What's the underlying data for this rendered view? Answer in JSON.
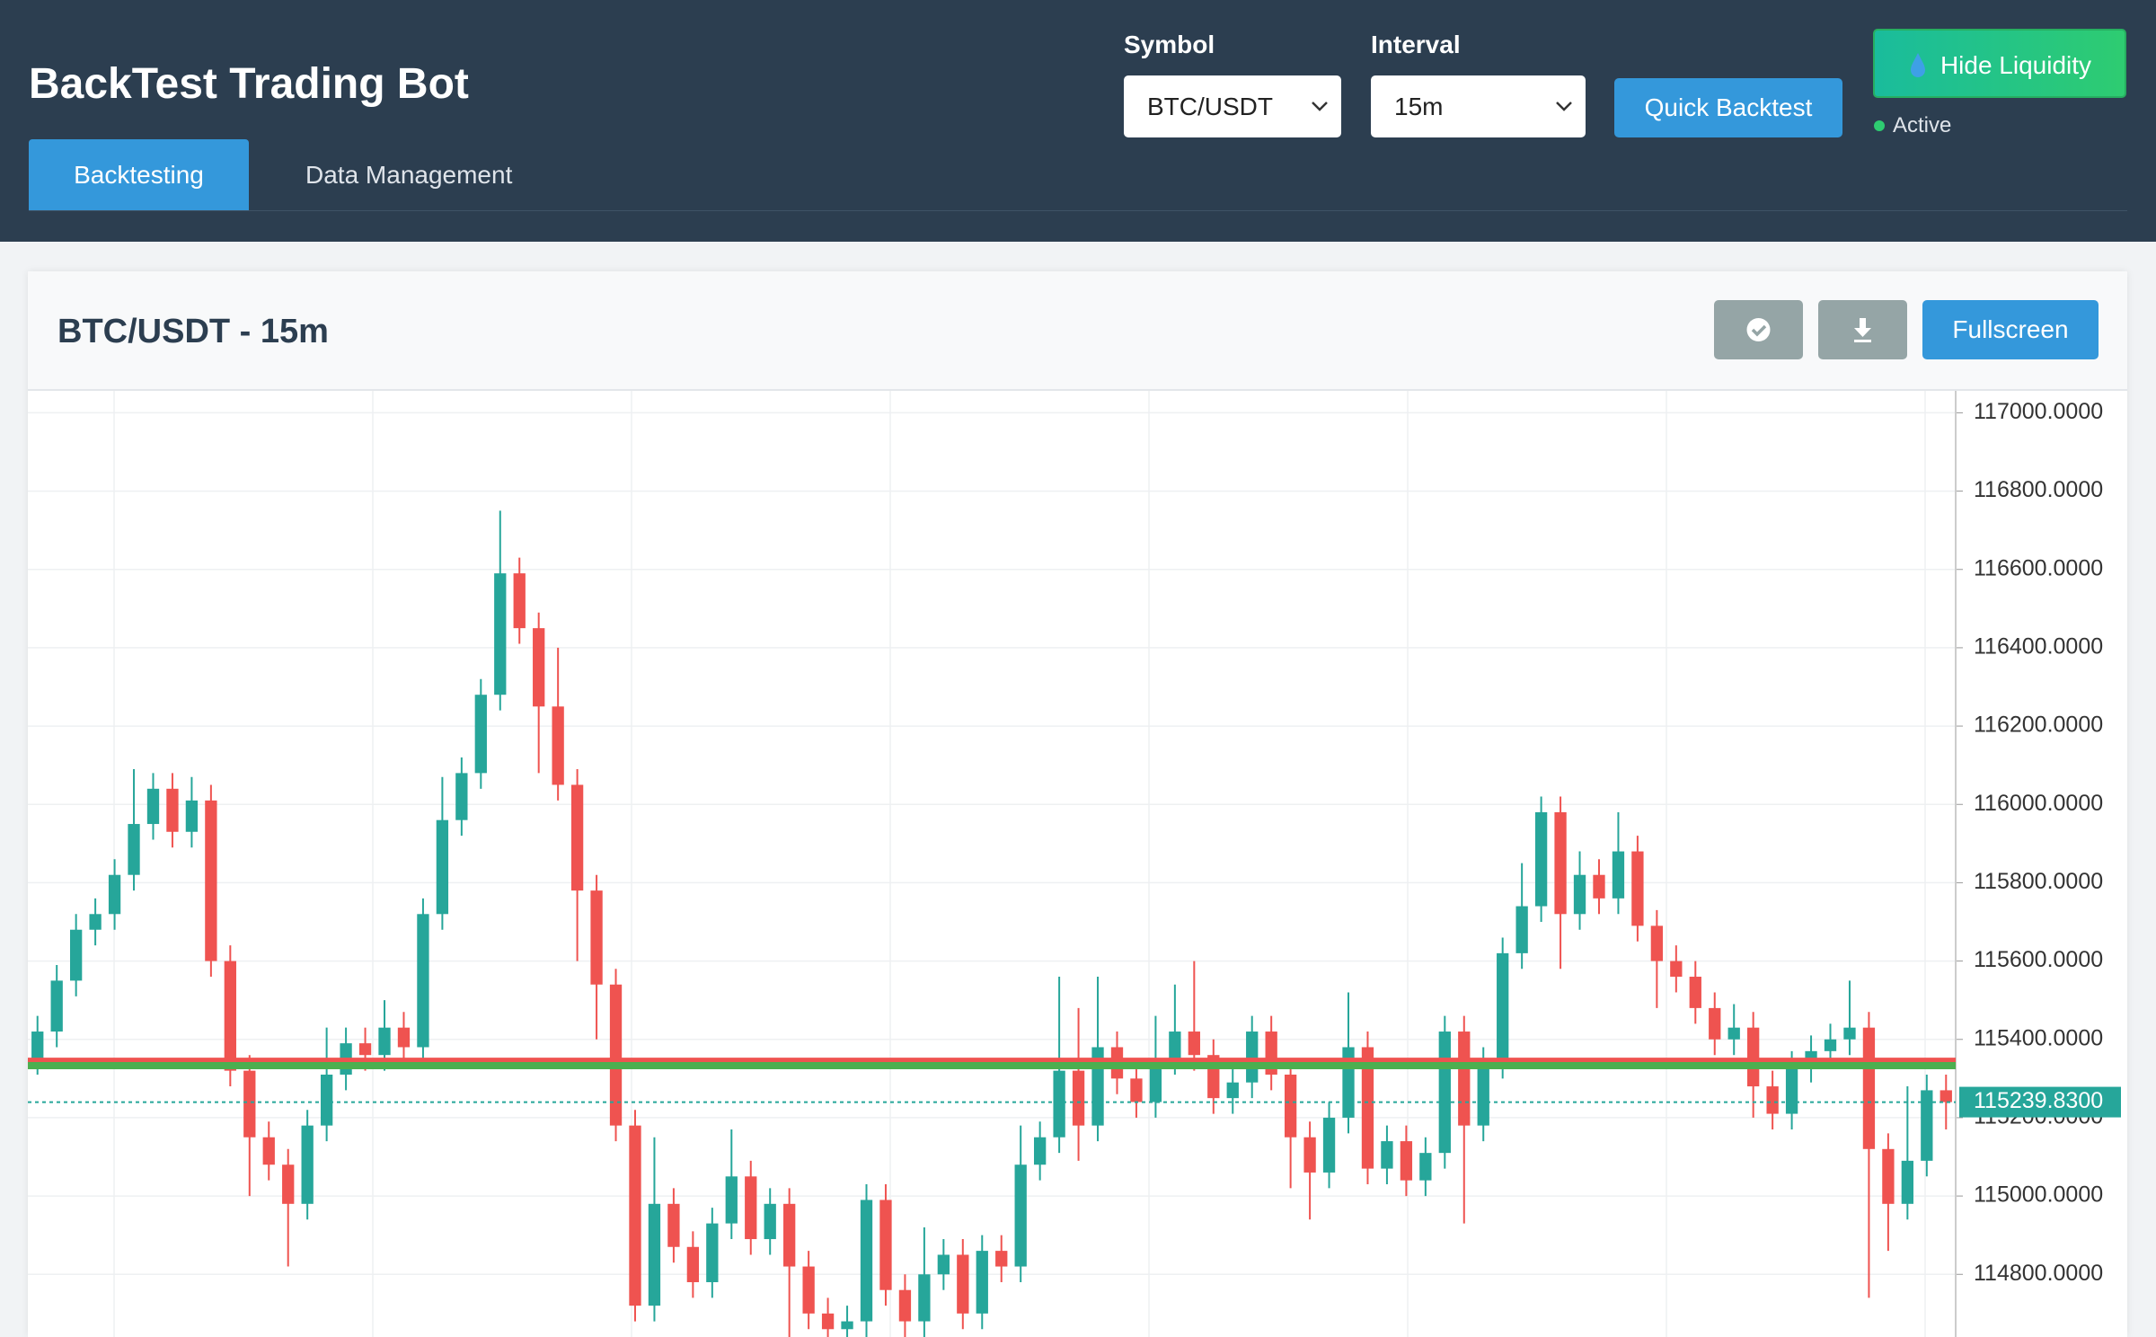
{
  "header": {
    "title": "BackTest Trading Bot",
    "tabs": [
      "Backtesting",
      "Data Management"
    ]
  },
  "controls": {
    "symbol_label": "Symbol",
    "symbol_value": "BTC/USDT",
    "interval_label": "Interval",
    "interval_value": "15m",
    "quick_backtest": "Quick Backtest",
    "hide_liquidity": "Hide Liquidity",
    "status": "Active",
    "fullscreen": "Fullscreen"
  },
  "chart_data": {
    "type": "candlestick",
    "title": "BTC/USDT - 15m",
    "up_color": "#26a69a",
    "down_color": "#ef5350",
    "ylim": [
      114640,
      117056
    ],
    "yticks": [
      {
        "value": 114800,
        "label": "114800.0000"
      },
      {
        "value": 115000,
        "label": "115000.0000"
      },
      {
        "value": 115200,
        "label": "115200.0000"
      },
      {
        "value": 115400,
        "label": "115400.0000"
      },
      {
        "value": 115600,
        "label": "115600.0000"
      },
      {
        "value": 115800,
        "label": "115800.0000"
      },
      {
        "value": 116000,
        "label": "116000.0000"
      },
      {
        "value": 116200,
        "label": "116200.0000"
      },
      {
        "value": 116400,
        "label": "116400.0000"
      },
      {
        "value": 116600,
        "label": "116600.0000"
      },
      {
        "value": 116800,
        "label": "116800.0000"
      },
      {
        "value": 117000,
        "label": "117000.0000"
      }
    ],
    "grid": true,
    "last_price": 115239.83,
    "last_price_label": "115239.8300",
    "levels": [
      {
        "value": 115344,
        "color": "#ef5350"
      },
      {
        "value": 115333,
        "color": "#4caf50"
      }
    ],
    "open": [
      115350,
      115420,
      115550,
      115680,
      115720,
      115820,
      115950,
      116040,
      115930,
      116010,
      115600,
      115320,
      115150,
      115080,
      114980,
      115180,
      115310,
      115390,
      115360,
      115430,
      115380,
      115720,
      115960,
      116080,
      116280,
      116590,
      116450,
      116250,
      116050,
      115780,
      115540,
      115180,
      114720,
      114980,
      114870,
      114780,
      114930,
      115050,
      114890,
      114980,
      114820,
      114700,
      114660,
      114680,
      114990,
      114760,
      114680,
      114800,
      114850,
      114700,
      114860,
      114820,
      115080,
      115150,
      115320,
      115180,
      115380,
      115300,
      115240,
      115350,
      115420,
      115360,
      115250,
      115290,
      115420,
      115310,
      115150,
      115060,
      115200,
      115380,
      115070,
      115140,
      115040,
      115110,
      115420,
      115180,
      115340,
      115620,
      115740,
      115980,
      115720,
      115820,
      115760,
      115880,
      115690,
      115600,
      115560,
      115480,
      115400,
      115430,
      115280,
      115210,
      115330,
      115370,
      115400,
      115430,
      115120,
      114980,
      115090,
      115270
    ],
    "high": [
      115460,
      115590,
      115720,
      115760,
      115860,
      116090,
      116080,
      116080,
      116070,
      116050,
      115640,
      115360,
      115190,
      115120,
      115220,
      115430,
      115430,
      115430,
      115500,
      115470,
      115760,
      116070,
      116120,
      116320,
      116750,
      116630,
      116490,
      116400,
      116090,
      115820,
      115580,
      115220,
      115150,
      115020,
      114910,
      114970,
      115170,
      115090,
      115020,
      115020,
      114860,
      114740,
      114720,
      115030,
      115030,
      114800,
      114920,
      114890,
      114890,
      114900,
      114900,
      115180,
      115190,
      115560,
      115480,
      115560,
      115420,
      115340,
      115460,
      115540,
      115600,
      115400,
      115330,
      115460,
      115460,
      115350,
      115190,
      115240,
      115520,
      115420,
      115180,
      115180,
      115150,
      115460,
      115460,
      115380,
      115660,
      115850,
      116020,
      116020,
      115880,
      115860,
      115980,
      115920,
      115730,
      115640,
      115600,
      115520,
      115490,
      115470,
      115320,
      115370,
      115410,
      115440,
      115550,
      115470,
      115160,
      115280,
      115310,
      115310
    ],
    "low": [
      115310,
      115380,
      115510,
      115640,
      115680,
      115780,
      115910,
      115890,
      115890,
      115560,
      115280,
      115000,
      115040,
      114820,
      114940,
      115140,
      115270,
      115320,
      115320,
      115340,
      115340,
      115680,
      115920,
      116040,
      116240,
      116410,
      116080,
      116010,
      115600,
      115400,
      115140,
      114680,
      114680,
      114830,
      114740,
      114740,
      114890,
      114850,
      114850,
      114640,
      114660,
      114620,
      114620,
      114640,
      114720,
      114640,
      114640,
      114760,
      114660,
      114660,
      114780,
      114780,
      115040,
      115110,
      115090,
      115140,
      115260,
      115200,
      115200,
      115310,
      115320,
      115210,
      115210,
      115250,
      115270,
      115020,
      114940,
      115020,
      115160,
      115030,
      115030,
      115000,
      115000,
      115070,
      114930,
      115140,
      115300,
      115580,
      115700,
      115580,
      115680,
      115720,
      115720,
      115650,
      115480,
      115520,
      115440,
      115360,
      115360,
      115200,
      115170,
      115170,
      115290,
      115330,
      115360,
      114740,
      114860,
      114940,
      115050,
      115170
    ],
    "close": [
      115420,
      115550,
      115680,
      115720,
      115820,
      115950,
      116040,
      115930,
      116010,
      115600,
      115320,
      115150,
      115080,
      114980,
      115180,
      115310,
      115390,
      115360,
      115430,
      115380,
      115720,
      115960,
      116080,
      116280,
      116590,
      116450,
      116250,
      116050,
      115780,
      115540,
      115180,
      114720,
      114980,
      114870,
      114780,
      114930,
      115050,
      114890,
      114980,
      114820,
      114700,
      114660,
      114680,
      114990,
      114760,
      114680,
      114800,
      114850,
      114700,
      114860,
      114820,
      115080,
      115150,
      115320,
      115180,
      115380,
      115300,
      115240,
      115350,
      115420,
      115360,
      115250,
      115290,
      115420,
      115310,
      115150,
      115060,
      115200,
      115380,
      115070,
      115140,
      115040,
      115110,
      115420,
      115180,
      115340,
      115620,
      115740,
      115980,
      115720,
      115820,
      115760,
      115880,
      115690,
      115600,
      115560,
      115480,
      115400,
      115430,
      115280,
      115210,
      115330,
      115370,
      115400,
      115430,
      115120,
      114980,
      115090,
      115270,
      115239.83
    ]
  }
}
